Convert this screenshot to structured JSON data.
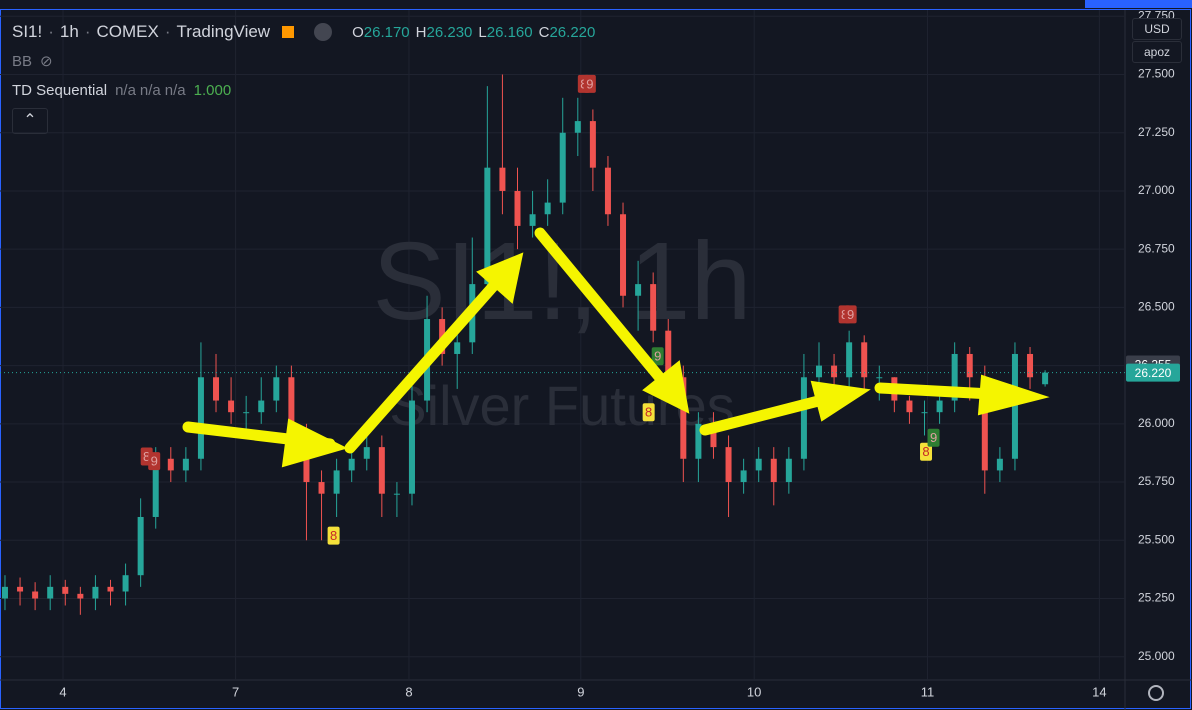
{
  "header": {
    "symbol": "SI1!",
    "interval": "1h",
    "exchange": "COMEX",
    "source": "TradingView",
    "ohlc_keys": [
      "O",
      "H",
      "L",
      "C"
    ],
    "ohlc_values": [
      {
        "value": 26.17,
        "label": "26.170"
      },
      {
        "value": 26.23,
        "label": "26.230"
      },
      {
        "value": 26.16,
        "label": "26.160"
      },
      {
        "value": 26.22,
        "label": "26.220"
      }
    ]
  },
  "indicators": {
    "bb": "BB",
    "td_name": "TD Sequential",
    "td_values": [
      "n/a",
      "n/a",
      "n/a"
    ],
    "td_last": "1.000"
  },
  "scale_buttons": [
    "USD",
    "apoz"
  ],
  "chart_data": {
    "type": "candlestick",
    "watermark_title": "SI1!, 1h",
    "watermark_subtitle": "Silver Futures",
    "up_color": "#26a69a",
    "down_color": "#ef5350",
    "grid": true,
    "open": [
      25.25,
      25.3,
      25.28,
      25.25,
      25.3,
      25.27,
      25.25,
      25.3,
      25.28,
      25.35,
      25.6,
      25.85,
      25.8,
      25.85,
      26.2,
      26.1,
      26.05,
      26.05,
      26.1,
      26.2,
      25.95,
      25.75,
      25.7,
      25.8,
      25.85,
      25.9,
      25.7,
      25.7,
      26.1,
      26.45,
      26.3,
      26.35,
      26.6,
      27.1,
      27.0,
      26.85,
      26.9,
      26.95,
      27.25,
      27.3,
      27.1,
      26.9,
      26.55,
      26.6,
      26.4,
      26.2,
      25.85,
      26.0,
      25.9,
      25.75,
      25.8,
      25.85,
      25.75,
      25.85,
      26.2,
      26.25,
      26.2,
      26.35,
      26.2,
      26.2,
      26.1,
      26.05,
      26.05,
      26.1,
      26.3,
      26.2,
      25.8,
      25.85,
      26.3,
      26.17
    ],
    "high": [
      25.35,
      25.34,
      25.32,
      25.35,
      25.33,
      25.3,
      25.35,
      25.33,
      25.4,
      25.68,
      25.9,
      25.9,
      25.9,
      26.35,
      26.3,
      26.2,
      26.12,
      26.2,
      26.25,
      26.25,
      26.0,
      25.8,
      25.85,
      25.9,
      25.95,
      25.95,
      25.75,
      26.2,
      26.55,
      26.5,
      26.45,
      26.8,
      27.45,
      27.5,
      27.1,
      27.0,
      27.05,
      27.4,
      27.4,
      27.35,
      27.15,
      26.95,
      26.7,
      26.65,
      26.45,
      26.25,
      26.05,
      26.05,
      25.95,
      25.85,
      25.9,
      25.9,
      25.9,
      26.3,
      26.35,
      26.3,
      26.4,
      26.38,
      26.25,
      26.2,
      26.12,
      26.1,
      26.15,
      26.35,
      26.33,
      26.25,
      25.9,
      26.35,
      26.33,
      26.23
    ],
    "low": [
      25.2,
      25.22,
      25.2,
      25.2,
      25.22,
      25.18,
      25.2,
      25.22,
      25.22,
      25.3,
      25.55,
      25.75,
      25.75,
      25.8,
      26.05,
      26.0,
      25.95,
      26.0,
      26.05,
      25.9,
      25.5,
      25.5,
      25.6,
      25.75,
      25.8,
      25.6,
      25.6,
      25.65,
      26.05,
      26.25,
      26.15,
      26.3,
      26.55,
      26.9,
      26.75,
      26.8,
      26.85,
      26.9,
      27.15,
      27.0,
      26.85,
      26.5,
      26.4,
      26.35,
      26.15,
      25.75,
      25.75,
      25.85,
      25.6,
      25.7,
      25.75,
      25.65,
      25.7,
      25.8,
      26.15,
      26.15,
      26.15,
      26.15,
      26.1,
      26.05,
      26.0,
      25.95,
      26.0,
      26.05,
      26.1,
      25.7,
      25.75,
      25.8,
      26.15,
      26.16
    ],
    "close": [
      25.3,
      25.28,
      25.25,
      25.3,
      25.27,
      25.25,
      25.3,
      25.28,
      25.35,
      25.6,
      25.85,
      25.8,
      25.85,
      26.2,
      26.1,
      26.05,
      26.05,
      26.1,
      26.2,
      25.95,
      25.75,
      25.7,
      25.8,
      25.85,
      25.9,
      25.7,
      25.7,
      26.1,
      26.45,
      26.3,
      26.35,
      26.6,
      27.1,
      27.0,
      26.85,
      26.9,
      26.95,
      27.25,
      27.3,
      27.1,
      26.9,
      26.55,
      26.6,
      26.4,
      26.2,
      25.85,
      26.0,
      25.9,
      25.75,
      25.8,
      25.85,
      25.75,
      25.85,
      26.2,
      26.25,
      26.2,
      26.35,
      26.2,
      26.2,
      26.1,
      26.05,
      26.05,
      26.1,
      26.3,
      26.2,
      25.8,
      25.85,
      26.3,
      26.2,
      26.22
    ],
    "xlim": [
      -0.33,
      74.3
    ],
    "ylim": [
      24.9,
      27.82
    ],
    "xticks": [
      {
        "value": 3.85,
        "label": "4"
      },
      {
        "value": 15.3,
        "label": "7"
      },
      {
        "value": 26.8,
        "label": "8"
      },
      {
        "value": 38.2,
        "label": "9"
      },
      {
        "value": 49.7,
        "label": "10"
      },
      {
        "value": 61.2,
        "label": "11"
      },
      {
        "value": 72.6,
        "label": "14"
      }
    ],
    "yticks": [
      {
        "value": 25,
        "label": "25.000"
      },
      {
        "value": 25.25,
        "label": "25.250"
      },
      {
        "value": 25.5,
        "label": "25.500"
      },
      {
        "value": 25.75,
        "label": "25.750"
      },
      {
        "value": 26,
        "label": "26.000"
      },
      {
        "value": 26.25,
        "label": "26.250"
      },
      {
        "value": 26.5,
        "label": "26.500"
      },
      {
        "value": 26.75,
        "label": "26.750"
      },
      {
        "value": 27,
        "label": "27.000"
      },
      {
        "value": 27.25,
        "label": "27.250"
      },
      {
        "value": 27.5,
        "label": "27.500"
      },
      {
        "value": 27.75,
        "label": "27.750"
      }
    ],
    "price_labels": [
      {
        "value": 26.255,
        "label": "26.255",
        "color": "#3a3e4a"
      },
      {
        "value": 26.22,
        "label": "26.220",
        "color": "#26a69a"
      }
    ],
    "td_marks": [
      {
        "x": 9.4,
        "y": 25.86,
        "label": "8",
        "color": "#b2342f"
      },
      {
        "x": 9.9,
        "y": 25.84,
        "label": "9",
        "color": "#b2342f"
      },
      {
        "x": 21.8,
        "y": 25.52,
        "label": "8",
        "color": "#f5e13a"
      },
      {
        "x": 38.4,
        "y": 27.46,
        "label": "8",
        "color": "#b2342f"
      },
      {
        "x": 38.8,
        "y": 27.46,
        "label": "9",
        "color": "#b2342f"
      },
      {
        "x": 42.7,
        "y": 26.05,
        "label": "8",
        "color": "#f5e13a"
      },
      {
        "x": 43.3,
        "y": 26.29,
        "label": "9",
        "color": "#2e7d32"
      },
      {
        "x": 55.7,
        "y": 26.47,
        "label": "8",
        "color": "#b2342f"
      },
      {
        "x": 56.1,
        "y": 26.47,
        "label": "9",
        "color": "#b2342f"
      },
      {
        "x": 61.1,
        "y": 25.88,
        "label": "8",
        "color": "#f5e13a"
      },
      {
        "x": 61.6,
        "y": 25.94,
        "label": "9",
        "color": "#2e7d32"
      }
    ]
  }
}
